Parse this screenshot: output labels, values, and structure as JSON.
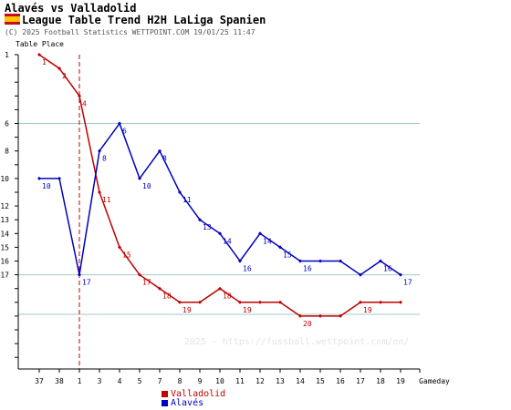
{
  "header": {
    "title": "Alavés vs Valladolid",
    "subtitle": "League Table Trend H2H LaLiga Spanien",
    "copyright": "(C) 2025 Football Statistics WETTPOINT.COM 19/01/25 11:47",
    "watermark": "2025 - https://fussball.wettpoint.com/en/"
  },
  "colors": {
    "valladolid": "#c00000",
    "alaves": "#0000c0",
    "grid": "#a0c8c8",
    "divider": "#c00000"
  },
  "chart_data": {
    "type": "line",
    "ylabel": "Table Place",
    "xlabel": "Gameday",
    "categories": [
      "37",
      "38",
      "1",
      "3",
      "4",
      "5",
      "7",
      "8",
      "9",
      "10",
      "11",
      "12",
      "13",
      "14",
      "15",
      "16",
      "17",
      "18",
      "19"
    ],
    "y_tick_labels": [
      "1",
      "6",
      "8",
      "10",
      "12",
      "13",
      "14",
      "15",
      "16",
      "17"
    ],
    "ylim": [
      1,
      20
    ],
    "reference_lines": [
      6,
      17
    ],
    "season_break_after": "38",
    "series": [
      {
        "name": "Valladolid",
        "color": "#c00000",
        "values": [
          1,
          2,
          4,
          11,
          15,
          17,
          18,
          19,
          19,
          18,
          19,
          19,
          19,
          20,
          20,
          20,
          19,
          19,
          19
        ],
        "labeled_index": [
          0,
          1,
          2,
          3,
          4,
          5,
          6,
          7,
          9,
          10,
          13,
          16
        ]
      },
      {
        "name": "Alavés",
        "color": "#0000c0",
        "values": [
          10,
          10,
          17,
          8,
          6,
          10,
          8,
          11,
          13,
          14,
          16,
          14,
          15,
          16,
          16,
          16,
          17,
          16,
          17
        ],
        "labeled_index": [
          0,
          2,
          3,
          4,
          5,
          6,
          7,
          8,
          9,
          10,
          11,
          12,
          13,
          17,
          18
        ]
      }
    ]
  }
}
